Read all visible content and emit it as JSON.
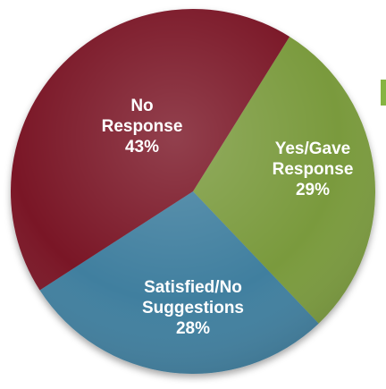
{
  "chart_data": {
    "type": "pie",
    "slices": [
      {
        "label_lines": [
          "Yes/Gave",
          "Response"
        ],
        "percent_label": "29%",
        "value": 29,
        "color": "#7a9a3d",
        "label_color": "#1a1a1a"
      },
      {
        "label_lines": [
          "Satisfied/No",
          "Suggestions"
        ],
        "percent_label": "28%",
        "value": 28,
        "color": "#3f7f9f",
        "label_color": "#ffffff"
      },
      {
        "label_lines": [
          "No",
          "Response"
        ],
        "percent_label": "43%",
        "value": 43,
        "color": "#7a1428",
        "label_color": "#ffffff"
      }
    ]
  }
}
